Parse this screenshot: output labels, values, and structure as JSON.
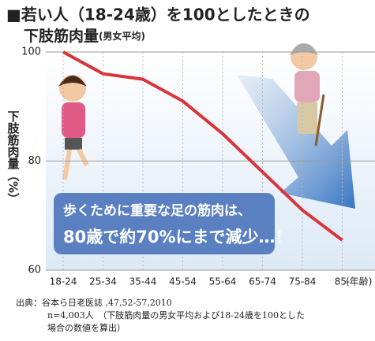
{
  "chart_data": {
    "type": "line",
    "title": "■若い人（18-24歳）を100としたときの",
    "title_line2": "下肢筋肉量",
    "title_line2_note": "(男女平均)",
    "y_label": "下肢筋肉量（%）",
    "x_label": "(年齢)",
    "categories": [
      "18-24",
      "25-34",
      "35-44",
      "45-54",
      "55-64",
      "65-74",
      "75-84",
      "85-"
    ],
    "values": [
      100,
      96,
      95,
      91,
      85,
      78,
      71,
      65.5
    ],
    "color": "#d8343a",
    "ylim": [
      60,
      100
    ],
    "yticks": [
      60,
      80,
      100
    ],
    "annotation": [
      "歩くために重要な足の筋肉は、",
      "80歳で約70%にまで減少…！"
    ],
    "source": [
      "出典：谷本ら日老医誌 ,47,52-57,2010",
      "n=4,003人　（下肢筋肉量の男女平均および18-24歳を100とした",
      "場合の数値を算出）"
    ]
  }
}
